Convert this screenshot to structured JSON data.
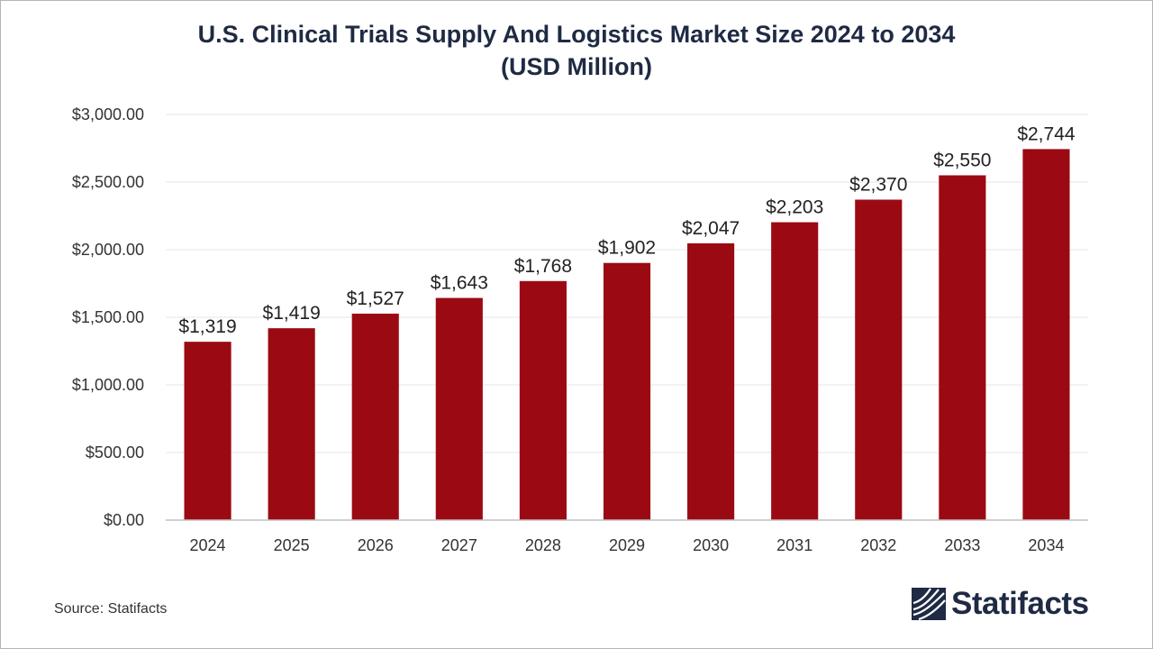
{
  "chart_data": {
    "type": "bar",
    "title_line1": "U.S. Clinical Trials Supply And Logistics Market Size 2024 to 2034",
    "title_line2": "(USD Million)",
    "xlabel": "",
    "ylabel": "",
    "categories": [
      "2024",
      "2025",
      "2026",
      "2027",
      "2028",
      "2029",
      "2030",
      "2031",
      "2032",
      "2033",
      "2034"
    ],
    "values": [
      1319,
      1419,
      1527,
      1643,
      1768,
      1902,
      2047,
      2203,
      2370,
      2550,
      2744
    ],
    "data_labels": [
      "$1,319",
      "$1,419",
      "$1,527",
      "$1,643",
      "$1,768",
      "$1,902",
      "$2,047",
      "$2,203",
      "$2,370",
      "$2,550",
      "$2,744"
    ],
    "ylim": [
      0,
      3000
    ],
    "yticks": [
      0,
      500,
      1000,
      1500,
      2000,
      2500,
      3000
    ],
    "ytick_labels": [
      "$0.00",
      "$500.00",
      "$1,000.00",
      "$1,500.00",
      "$2,000.00",
      "$2,500.00",
      "$3,000.00"
    ],
    "grid": true,
    "legend": "none",
    "bar_color": "#9b0a12"
  },
  "footer": {
    "source": "Source: Statifacts",
    "brand": "Statifacts"
  },
  "colors": {
    "title": "#1f2a44",
    "brand": "#1f2a44"
  }
}
